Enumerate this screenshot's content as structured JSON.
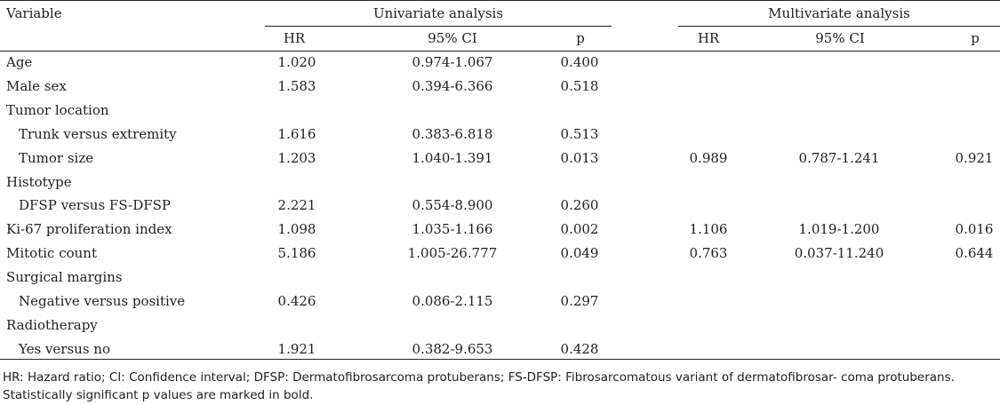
{
  "header": {
    "variable": "Variable",
    "univariate": "Univariate analysis",
    "multivariate": "Multivariate analysis",
    "hr": "HR",
    "ci": "95% CI",
    "p": "p"
  },
  "rows": [
    {
      "label": "Age",
      "indent": false,
      "u_hr": "1.020",
      "u_ci": "0.974-1.067",
      "u_p": "0.400",
      "m_hr": "",
      "m_ci": "",
      "m_p": ""
    },
    {
      "label": "Male sex",
      "indent": false,
      "u_hr": "1.583",
      "u_ci": "0.394-6.366",
      "u_p": "0.518",
      "m_hr": "",
      "m_ci": "",
      "m_p": ""
    },
    {
      "label": "Tumor location",
      "indent": false,
      "u_hr": "",
      "u_ci": "",
      "u_p": "",
      "m_hr": "",
      "m_ci": "",
      "m_p": ""
    },
    {
      "label": "Trunk versus extremity",
      "indent": true,
      "u_hr": "1.616",
      "u_ci": "0.383-6.818",
      "u_p": "0.513",
      "m_hr": "",
      "m_ci": "",
      "m_p": ""
    },
    {
      "label": "Tumor size",
      "indent": true,
      "u_hr": "1.203",
      "u_ci": "1.040-1.391",
      "u_p": "0.013",
      "m_hr": "0.989",
      "m_ci": "0.787-1.241",
      "m_p": "0.921"
    },
    {
      "label": "Histotype",
      "indent": false,
      "u_hr": "",
      "u_ci": "",
      "u_p": "",
      "m_hr": "",
      "m_ci": "",
      "m_p": ""
    },
    {
      "label": "DFSP versus FS-DFSP",
      "indent": true,
      "u_hr": "2.221",
      "u_ci": "0.554-8.900",
      "u_p": "0.260",
      "m_hr": "",
      "m_ci": "",
      "m_p": ""
    },
    {
      "label": "Ki-67 proliferation index",
      "indent": false,
      "u_hr": "1.098",
      "u_ci": "1.035-1.166",
      "u_p": "0.002",
      "m_hr": "1.106",
      "m_ci": "1.019-1.200",
      "m_p": "0.016"
    },
    {
      "label": "Mitotic count",
      "indent": false,
      "u_hr": "5.186",
      "u_ci": "1.005-26.777",
      "u_p": "0.049",
      "m_hr": "0.763",
      "m_ci": "0.037-11.240",
      "m_p": "0.644"
    },
    {
      "label": "Surgical margins",
      "indent": false,
      "u_hr": "",
      "u_ci": "",
      "u_p": "",
      "m_hr": "",
      "m_ci": "",
      "m_p": ""
    },
    {
      "label": "Negative versus positive",
      "indent": true,
      "u_hr": "0.426",
      "u_ci": "0.086-2.115",
      "u_p": "0.297",
      "m_hr": "",
      "m_ci": "",
      "m_p": ""
    },
    {
      "label": "Radiotherapy",
      "indent": false,
      "u_hr": "",
      "u_ci": "",
      "u_p": "",
      "m_hr": "",
      "m_ci": "",
      "m_p": ""
    },
    {
      "label": "Yes versus no",
      "indent": true,
      "u_hr": "1.921",
      "u_ci": "0.382-9.653",
      "u_p": "0.428",
      "m_hr": "",
      "m_ci": "",
      "m_p": ""
    }
  ],
  "footnote": "HR: Hazard ratio; CI: Confidence interval; DFSP: Dermatofibrosarcoma protuberans; FS-DFSP: Fibrosarcomatous variant of dermatofibrosar- coma protuberans. Statistically significant p values are marked in bold."
}
